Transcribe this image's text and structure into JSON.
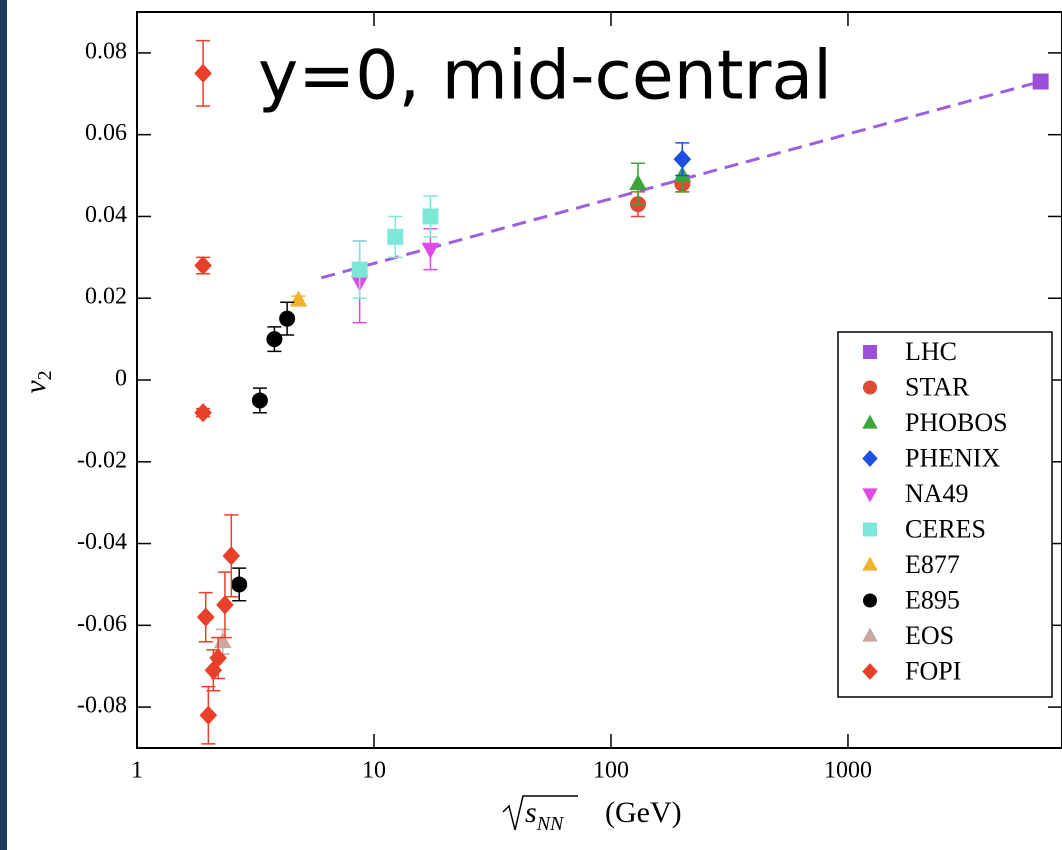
{
  "chart_data": {
    "type": "scatter",
    "annotation": "y=0, mid-central",
    "ylabel": "v",
    "ylabel_subscript": "2",
    "xlabel_symbol": "s",
    "xlabel_subscript": "NN",
    "xlabel_unit": "(GeV)",
    "xscale": "log",
    "xlim": [
      1,
      8000
    ],
    "xticks": [
      1,
      10,
      100,
      1000
    ],
    "ylim": [
      -0.09,
      0.09
    ],
    "yticks": [
      -0.08,
      -0.06,
      -0.04,
      -0.02,
      0,
      0.02,
      0.04,
      0.06,
      0.08
    ],
    "legend": "lower right",
    "fit_line": {
      "color": "#9b5fe0",
      "x": [
        6,
        6500
      ],
      "values": [
        0.025,
        0.073
      ]
    },
    "series": [
      {
        "name": "LHC",
        "color": "#9b4fd8",
        "marker": "square",
        "x": [
          6500
        ],
        "values": [
          0.073
        ],
        "errors": [
          0
        ]
      },
      {
        "name": "STAR",
        "color": "#e04a35",
        "marker": "circle",
        "x": [
          130,
          200
        ],
        "values": [
          0.043,
          0.048
        ],
        "errors": [
          0.003,
          0.002
        ]
      },
      {
        "name": "PHOBOS",
        "color": "#3aa63a",
        "marker": "triangle-up",
        "x": [
          130,
          200
        ],
        "values": [
          0.048,
          0.05
        ],
        "errors": [
          0.005,
          0.004
        ]
      },
      {
        "name": "PHENIX",
        "color": "#1f4fe0",
        "marker": "diamond",
        "x": [
          200
        ],
        "values": [
          0.054
        ],
        "errors": [
          0.004
        ]
      },
      {
        "name": "NA49",
        "color": "#e048e8",
        "marker": "triangle-down",
        "x": [
          8.7,
          17.3
        ],
        "values": [
          0.024,
          0.032
        ],
        "errors": [
          0.01,
          0.005
        ]
      },
      {
        "name": "CERES",
        "color": "#7ee8d8",
        "marker": "square",
        "x": [
          8.7,
          12.3,
          17.3
        ],
        "values": [
          0.027,
          0.035,
          0.04
        ],
        "errors": [
          0.007,
          0.005,
          0.005
        ]
      },
      {
        "name": "E877",
        "color": "#f0b030",
        "marker": "triangle-up",
        "x": [
          4.8
        ],
        "values": [
          0.0195
        ],
        "errors": [
          0.001
        ]
      },
      {
        "name": "E895",
        "color": "#000000",
        "marker": "circle",
        "x": [
          2.7,
          3.3,
          3.8,
          4.3
        ],
        "values": [
          -0.05,
          -0.005,
          0.01,
          0.015
        ],
        "errors": [
          0.004,
          0.003,
          0.003,
          0.004
        ]
      },
      {
        "name": "EOS",
        "color": "#c8a8a0",
        "marker": "triangle-up",
        "x": [
          2.3
        ],
        "values": [
          -0.064
        ],
        "errors": [
          0.003
        ]
      },
      {
        "name": "FOPI",
        "color": "#e8402a",
        "marker": "diamond",
        "x": [
          1.9,
          1.9,
          1.9,
          1.95,
          2.0,
          2.1,
          2.2,
          2.35,
          2.5
        ],
        "values": [
          0.075,
          0.028,
          -0.008,
          -0.058,
          -0.082,
          -0.071,
          -0.068,
          -0.055,
          -0.043
        ],
        "errors": [
          0.008,
          0.002,
          0.001,
          0.006,
          0.007,
          0.005,
          0.005,
          0.008,
          0.01
        ]
      }
    ]
  }
}
